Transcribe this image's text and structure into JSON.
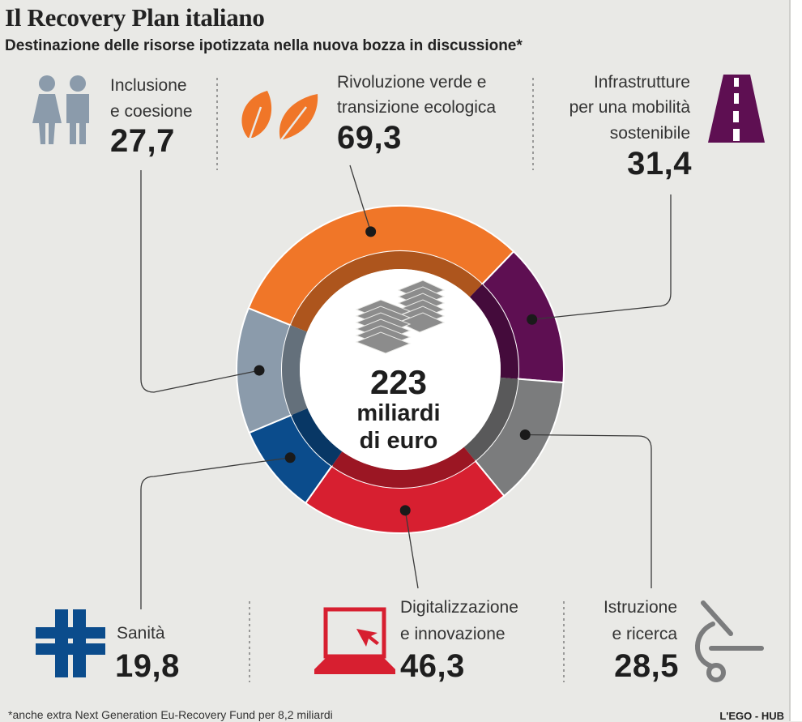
{
  "header": {
    "title": "Il Recovery Plan italiano",
    "subtitle": "Destinazione delle risorse ipotizzata nella nuova bozza in discussione*"
  },
  "center": {
    "total": "223",
    "unit_line1": "miliardi",
    "unit_line2": "di euro"
  },
  "footnote": "*anche extra Next Generation Eu-Recovery Fund per 8,2 miliardi",
  "credit": "L'EGO - HUB",
  "chart_data": {
    "type": "pie",
    "title": "Il Recovery Plan italiano",
    "subtitle": "Destinazione delle risorse ipotizzata nella nuova bozza in discussione*",
    "unit": "miliardi di euro",
    "total": 223,
    "slices": [
      {
        "label": "Rivoluzione verde e transizione ecologica",
        "value": 69.3,
        "display": "69,3",
        "color": "#f07628",
        "icon": "leaves-icon"
      },
      {
        "label": "Infrastrutture per una mobilità sostenibile",
        "value": 31.4,
        "display": "31,4",
        "color": "#5e0f52",
        "icon": "road-icon"
      },
      {
        "label": "Istruzione e ricerca",
        "value": 28.5,
        "display": "28,5",
        "color": "#7b7c7d",
        "icon": "microscope-icon"
      },
      {
        "label": "Digitalizzazione e innovazione",
        "value": 46.3,
        "display": "46,3",
        "color": "#d71f30",
        "icon": "laptop-icon"
      },
      {
        "label": "Sanità",
        "value": 19.8,
        "display": "19,8",
        "color": "#0b4c8c",
        "icon": "health-cross-icon"
      },
      {
        "label": "Inclusione e coesione",
        "value": 27.7,
        "display": "27,7",
        "color": "#8b9bab",
        "icon": "people-icon"
      }
    ]
  },
  "labels": {
    "inclusione": {
      "line1": "Inclusione",
      "line2": "e coesione",
      "value": "27,7"
    },
    "verde": {
      "line1": "Rivoluzione verde e",
      "line2": "transizione ecologica",
      "value": "69,3"
    },
    "infra": {
      "line1": "Infrastrutture",
      "line2": "per una mobilità",
      "line3": "sostenibile",
      "value": "31,4"
    },
    "sanita": {
      "line1": "Sanità",
      "value": "19,8"
    },
    "digital": {
      "line1": "Digitalizzazione",
      "line2": "e innovazione",
      "value": "46,3"
    },
    "istruzione": {
      "line1": "Istruzione",
      "line2": "e ricerca",
      "value": "28,5"
    }
  }
}
